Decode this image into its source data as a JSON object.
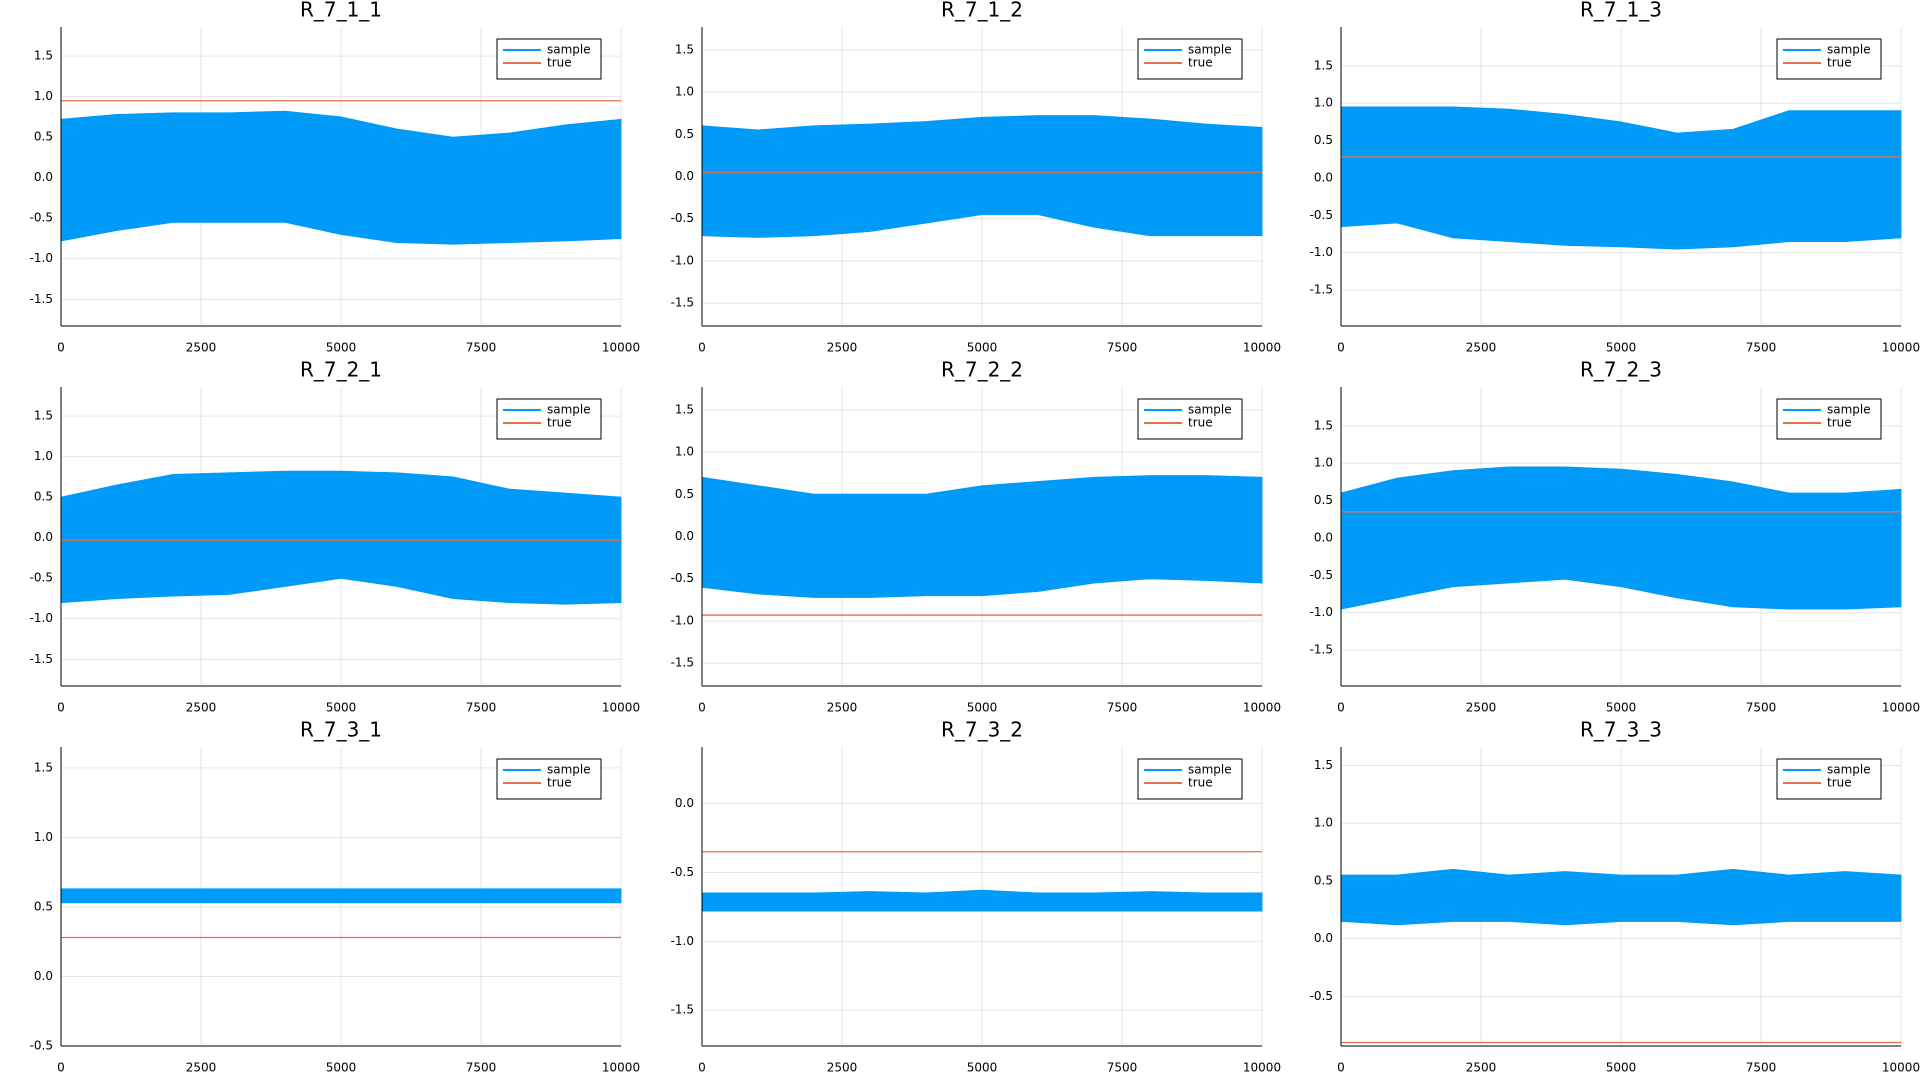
{
  "chart_data": [
    {
      "type": "band",
      "title": "R_7_1_1",
      "x": [
        0,
        1000,
        2000,
        3000,
        4000,
        5000,
        6000,
        7000,
        8000,
        9000,
        10000
      ],
      "xlim": [
        0,
        10000
      ],
      "xticks": [
        0,
        2500,
        5000,
        7500,
        10000
      ],
      "ylim": [
        -1.83,
        1.86
      ],
      "yticks": [
        -1.5,
        {
          "value": -1,
          "label": "-1.0"
        },
        -0.5,
        {
          "value": 0,
          "label": "0.0"
        },
        0.5,
        {
          "value": 1,
          "label": "1.0"
        },
        1.5
      ],
      "grid": true,
      "legend": "upper right",
      "series": [
        {
          "name": "sample",
          "color": "#009af9",
          "upper": [
            0.72,
            0.78,
            0.8,
            0.8,
            0.82,
            0.75,
            0.6,
            0.5,
            0.55,
            0.65,
            0.72
          ],
          "lower": [
            -0.78,
            -0.65,
            -0.55,
            -0.55,
            -0.55,
            -0.7,
            -0.8,
            -0.82,
            -0.8,
            -0.78,
            -0.75
          ]
        },
        {
          "name": "true",
          "color": "#e26f46",
          "x": [
            0,
            10000
          ],
          "values": [
            0.95,
            0.95
          ]
        }
      ]
    },
    {
      "type": "band",
      "title": "R_7_1_2",
      "x": [
        0,
        1000,
        2000,
        3000,
        4000,
        5000,
        6000,
        7000,
        8000,
        9000,
        10000
      ],
      "xlim": [
        0,
        10000
      ],
      "xticks": [
        0,
        2500,
        5000,
        7500,
        10000
      ],
      "ylim": [
        -1.77,
        1.77
      ],
      "yticks": [
        -1.5,
        {
          "value": -1,
          "label": "-1.0"
        },
        -0.5,
        {
          "value": 0,
          "label": "0.0"
        },
        0.5,
        {
          "value": 1,
          "label": "1.0"
        },
        1.5
      ],
      "grid": true,
      "legend": "upper right",
      "series": [
        {
          "name": "sample",
          "color": "#009af9",
          "upper": [
            0.6,
            0.55,
            0.6,
            0.62,
            0.65,
            0.7,
            0.72,
            0.72,
            0.68,
            0.62,
            0.58
          ],
          "lower": [
            -0.7,
            -0.72,
            -0.7,
            -0.65,
            -0.55,
            -0.45,
            -0.45,
            -0.6,
            -0.7,
            -0.7,
            -0.7
          ]
        },
        {
          "name": "true",
          "color": "#e26f46",
          "x": [
            0,
            10000
          ],
          "values": [
            0.05,
            0.05
          ]
        }
      ]
    },
    {
      "type": "band",
      "title": "R_7_1_3",
      "x": [
        0,
        1000,
        2000,
        3000,
        4000,
        5000,
        6000,
        7000,
        8000,
        9000,
        10000
      ],
      "xlim": [
        0,
        10000
      ],
      "xticks": [
        0,
        2500,
        5000,
        7500,
        10000
      ],
      "ylim": [
        -1.98,
        2.02
      ],
      "yticks": [
        -1.5,
        {
          "value": -1,
          "label": "-1.0"
        },
        -0.5,
        {
          "value": 0,
          "label": "0.0"
        },
        0.5,
        {
          "value": 1,
          "label": "1.0"
        },
        1.5
      ],
      "grid": true,
      "legend": "upper right",
      "series": [
        {
          "name": "sample",
          "color": "#009af9",
          "upper": [
            0.95,
            0.95,
            0.95,
            0.92,
            0.85,
            0.75,
            0.6,
            0.65,
            0.9,
            0.9,
            0.9
          ],
          "lower": [
            -0.65,
            -0.6,
            -0.8,
            -0.85,
            -0.9,
            -0.92,
            -0.95,
            -0.92,
            -0.85,
            -0.85,
            -0.8
          ]
        },
        {
          "name": "true",
          "color": "#e26f46",
          "x": [
            0,
            10000
          ],
          "values": [
            0.28,
            0.28
          ]
        }
      ]
    },
    {
      "type": "band",
      "title": "R_7_2_1",
      "x": [
        0,
        1000,
        2000,
        3000,
        4000,
        5000,
        6000,
        7000,
        8000,
        9000,
        10000
      ],
      "xlim": [
        0,
        10000
      ],
      "xticks": [
        0,
        2500,
        5000,
        7500,
        10000
      ],
      "ylim": [
        -1.83,
        1.86
      ],
      "yticks": [
        -1.5,
        {
          "value": -1,
          "label": "-1.0"
        },
        -0.5,
        {
          "value": 0,
          "label": "0.0"
        },
        0.5,
        {
          "value": 1,
          "label": "1.0"
        },
        1.5
      ],
      "grid": true,
      "legend": "upper right",
      "series": [
        {
          "name": "sample",
          "color": "#009af9",
          "upper": [
            0.5,
            0.65,
            0.78,
            0.8,
            0.82,
            0.82,
            0.8,
            0.75,
            0.6,
            0.55,
            0.5
          ],
          "lower": [
            -0.8,
            -0.75,
            -0.72,
            -0.7,
            -0.6,
            -0.5,
            -0.6,
            -0.75,
            -0.8,
            -0.82,
            -0.8
          ]
        },
        {
          "name": "true",
          "color": "#e26f46",
          "x": [
            0,
            10000
          ],
          "values": [
            -0.03,
            -0.03
          ]
        }
      ]
    },
    {
      "type": "band",
      "title": "R_7_2_2",
      "x": [
        0,
        1000,
        2000,
        3000,
        4000,
        5000,
        6000,
        7000,
        8000,
        9000,
        10000
      ],
      "xlim": [
        0,
        10000
      ],
      "xticks": [
        0,
        2500,
        5000,
        7500,
        10000
      ],
      "ylim": [
        -1.77,
        1.77
      ],
      "yticks": [
        -1.5,
        {
          "value": -1,
          "label": "-1.0"
        },
        -0.5,
        {
          "value": 0,
          "label": "0.0"
        },
        0.5,
        {
          "value": 1,
          "label": "1.0"
        },
        1.5
      ],
      "grid": true,
      "legend": "upper right",
      "series": [
        {
          "name": "sample",
          "color": "#009af9",
          "upper": [
            0.7,
            0.6,
            0.5,
            0.5,
            0.5,
            0.6,
            0.65,
            0.7,
            0.72,
            0.72,
            0.7
          ],
          "lower": [
            -0.6,
            -0.68,
            -0.72,
            -0.72,
            -0.7,
            -0.7,
            -0.65,
            -0.55,
            -0.5,
            -0.52,
            -0.55
          ]
        },
        {
          "name": "true",
          "color": "#e26f46",
          "x": [
            0,
            10000
          ],
          "values": [
            -0.93,
            -0.93
          ]
        }
      ]
    },
    {
      "type": "band",
      "title": "R_7_2_3",
      "x": [
        0,
        1000,
        2000,
        3000,
        4000,
        5000,
        6000,
        7000,
        8000,
        9000,
        10000
      ],
      "xlim": [
        0,
        10000
      ],
      "xticks": [
        0,
        2500,
        5000,
        7500,
        10000
      ],
      "ylim": [
        -1.98,
        2.02
      ],
      "yticks": [
        -1.5,
        {
          "value": -1,
          "label": "-1.0"
        },
        -0.5,
        {
          "value": 0,
          "label": "0.0"
        },
        0.5,
        {
          "value": 1,
          "label": "1.0"
        },
        1.5
      ],
      "grid": true,
      "legend": "upper right",
      "series": [
        {
          "name": "sample",
          "color": "#009af9",
          "upper": [
            0.6,
            0.8,
            0.9,
            0.95,
            0.95,
            0.92,
            0.85,
            0.75,
            0.6,
            0.6,
            0.65
          ],
          "lower": [
            -0.95,
            -0.8,
            -0.65,
            -0.6,
            -0.55,
            -0.65,
            -0.8,
            -0.92,
            -0.95,
            -0.95,
            -0.92
          ]
        },
        {
          "name": "true",
          "color": "#e26f46",
          "x": [
            0,
            10000
          ],
          "values": [
            0.35,
            0.35
          ]
        }
      ]
    },
    {
      "type": "band",
      "title": "R_7_3_1",
      "x": [
        0,
        1000,
        2000,
        3000,
        4000,
        5000,
        6000,
        7000,
        8000,
        9000,
        10000
      ],
      "xlim": [
        0,
        10000
      ],
      "xticks": [
        0,
        2500,
        5000,
        7500,
        10000
      ],
      "ylim": [
        -0.5,
        1.65
      ],
      "yticks": [
        -0.5,
        {
          "value": 0,
          "label": "0.0"
        },
        0.5,
        {
          "value": 1,
          "label": "1.0"
        },
        1.5
      ],
      "grid": true,
      "legend": "upper right",
      "series": [
        {
          "name": "sample",
          "color": "#009af9",
          "upper": [
            0.63,
            0.63,
            0.63,
            0.63,
            0.63,
            0.63,
            0.63,
            0.63,
            0.63,
            0.63,
            0.63
          ],
          "lower": [
            0.53,
            0.53,
            0.53,
            0.53,
            0.53,
            0.53,
            0.53,
            0.53,
            0.53,
            0.53,
            0.53
          ]
        },
        {
          "name": "true",
          "color": "#e26f46",
          "x": [
            0,
            10000
          ],
          "values": [
            0.28,
            0.28
          ]
        }
      ]
    },
    {
      "type": "band",
      "title": "R_7_3_2",
      "x": [
        0,
        1000,
        2000,
        3000,
        4000,
        5000,
        6000,
        7000,
        8000,
        9000,
        10000
      ],
      "xlim": [
        0,
        10000
      ],
      "xticks": [
        0,
        2500,
        5000,
        7500,
        10000
      ],
      "ylim": [
        -1.76,
        0.41
      ],
      "yticks": [
        -1.5,
        {
          "value": -1,
          "label": "-1.0"
        },
        -0.5,
        {
          "value": 0,
          "label": "0.0"
        }
      ],
      "grid": true,
      "legend": "upper right",
      "series": [
        {
          "name": "sample",
          "color": "#009af9",
          "upper": [
            -0.65,
            -0.65,
            -0.65,
            -0.64,
            -0.65,
            -0.63,
            -0.65,
            -0.65,
            -0.64,
            -0.65,
            -0.65
          ],
          "lower": [
            -0.78,
            -0.78,
            -0.78,
            -0.78,
            -0.78,
            -0.78,
            -0.78,
            -0.78,
            -0.78,
            -0.78,
            -0.78
          ]
        },
        {
          "name": "true",
          "color": "#e26f46",
          "x": [
            0,
            10000
          ],
          "values": [
            -0.35,
            -0.35
          ]
        }
      ]
    },
    {
      "type": "band",
      "title": "R_7_3_3",
      "x": [
        0,
        1000,
        2000,
        3000,
        4000,
        5000,
        6000,
        7000,
        8000,
        9000,
        10000
      ],
      "xlim": [
        0,
        10000
      ],
      "xticks": [
        0,
        2500,
        5000,
        7500,
        10000
      ],
      "ylim": [
        -0.93,
        1.66
      ],
      "yticks": [
        -0.5,
        {
          "value": 0,
          "label": "0.0"
        },
        0.5,
        {
          "value": 1,
          "label": "1.0"
        },
        1.5
      ],
      "grid": true,
      "legend": "upper right",
      "series": [
        {
          "name": "sample",
          "color": "#009af9",
          "upper": [
            0.55,
            0.55,
            0.6,
            0.55,
            0.58,
            0.55,
            0.55,
            0.6,
            0.55,
            0.58,
            0.55
          ],
          "lower": [
            0.15,
            0.12,
            0.15,
            0.15,
            0.12,
            0.15,
            0.15,
            0.12,
            0.15,
            0.15,
            0.15
          ]
        },
        {
          "name": "true",
          "color": "#e26f46",
          "x": [
            0,
            10000
          ],
          "values": [
            -0.9,
            -0.9
          ]
        }
      ]
    }
  ]
}
